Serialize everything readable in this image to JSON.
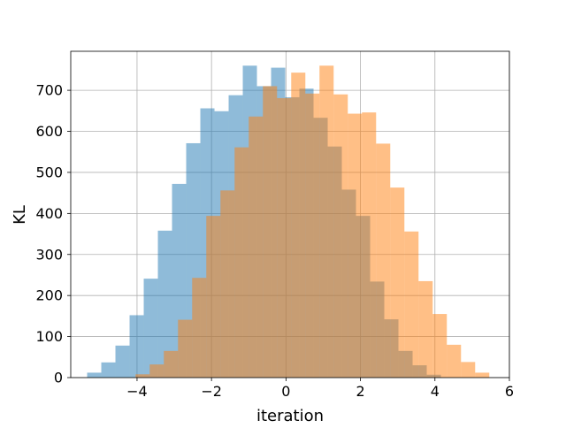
{
  "chart_data": {
    "type": "histogram",
    "xlabel": "iteration",
    "ylabel": "KL",
    "xlim": [
      -5.78,
      6.0
    ],
    "ylim": [
      0,
      795
    ],
    "x_ticks": [
      -4,
      -2,
      0,
      2,
      4,
      6
    ],
    "x_tick_labels": [
      "−4",
      "−2",
      "0",
      "2",
      "4",
      "6"
    ],
    "y_ticks": [
      0,
      100,
      200,
      300,
      400,
      500,
      600,
      700
    ],
    "y_tick_labels": [
      "0",
      "100",
      "200",
      "300",
      "400",
      "500",
      "600",
      "700"
    ],
    "grid": true,
    "legend": "none",
    "series": [
      {
        "color": "#1f77b4",
        "opacity": 0.5,
        "bin_edges": [
          -5.34,
          -4.96,
          -4.58,
          -4.2,
          -3.82,
          -3.44,
          -3.06,
          -2.68,
          -2.3,
          -1.92,
          -1.54,
          -1.16,
          -0.78,
          -0.4,
          -0.02,
          0.36,
          0.74,
          1.12,
          1.5,
          1.88,
          2.26,
          2.64,
          3.02,
          3.4,
          3.78,
          4.16
        ],
        "values": [
          12,
          37,
          78,
          152,
          241,
          358,
          472,
          571,
          656,
          649,
          688,
          760,
          710,
          755,
          683,
          704,
          633,
          563,
          458,
          394,
          234,
          142,
          65,
          30,
          7
        ]
      },
      {
        "color": "#ff7f0e",
        "opacity": 0.5,
        "bin_edges": [
          -4.04,
          -3.66,
          -3.28,
          -2.9,
          -2.52,
          -2.14,
          -1.76,
          -1.38,
          -1.0,
          -0.62,
          -0.24,
          0.14,
          0.52,
          0.9,
          1.28,
          1.66,
          2.04,
          2.42,
          2.8,
          3.18,
          3.56,
          3.94,
          4.32,
          4.7,
          5.08,
          5.46
        ],
        "values": [
          8,
          32,
          65,
          141,
          243,
          394,
          456,
          561,
          636,
          710,
          681,
          743,
          692,
          760,
          690,
          643,
          646,
          570,
          463,
          356,
          235,
          155,
          80,
          38,
          12
        ]
      }
    ]
  }
}
